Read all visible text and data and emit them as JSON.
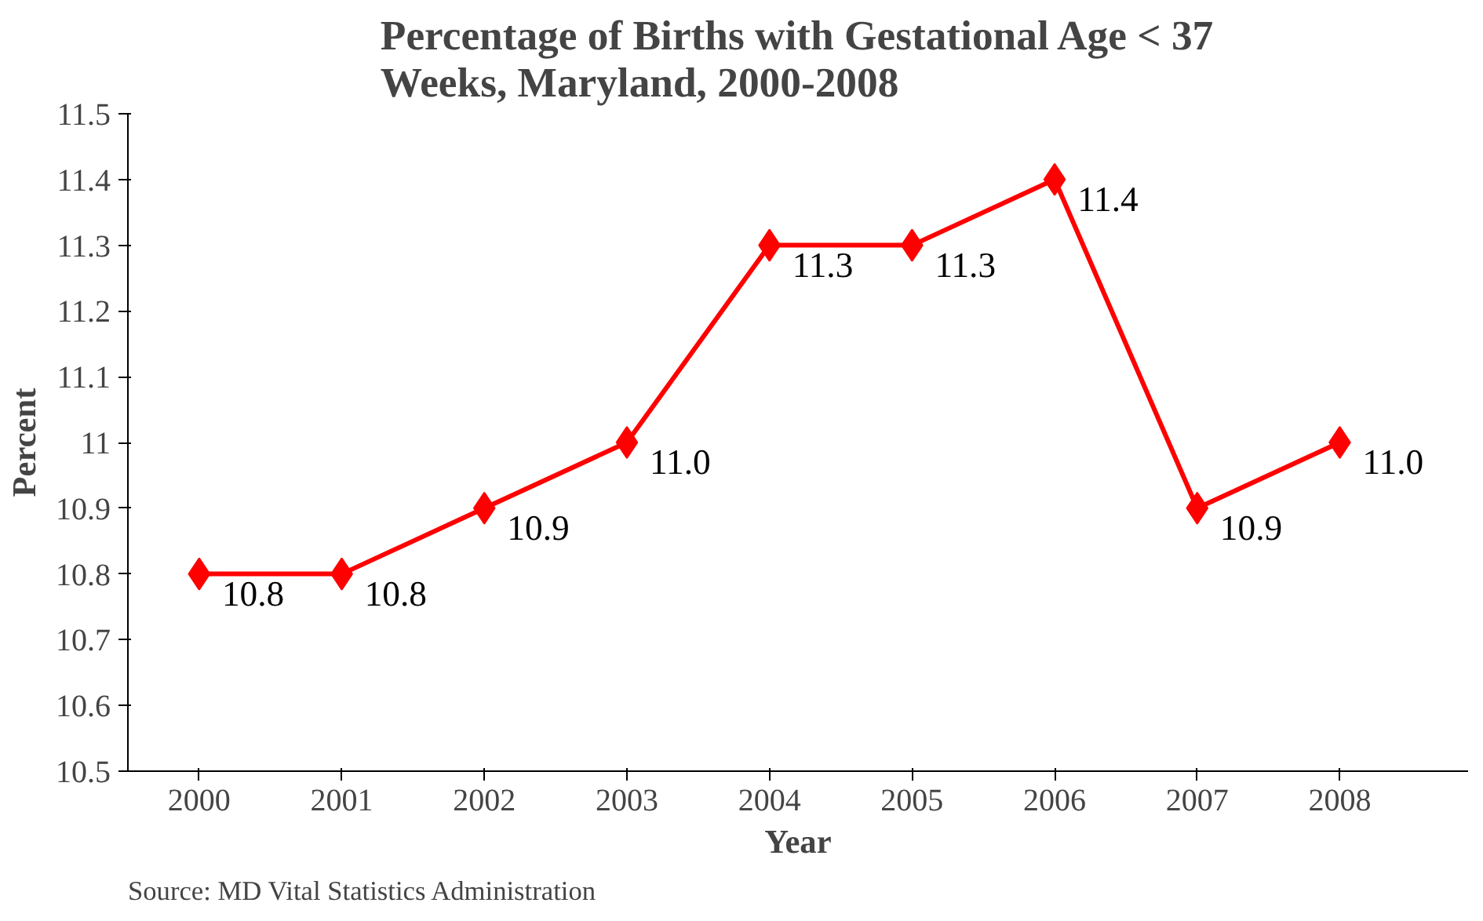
{
  "chart_data": {
    "type": "line",
    "title": "Percentage of Births with Gestational Age < 37 Weeks, Maryland, 2000-2008",
    "xlabel": "Year",
    "ylabel": "Percent",
    "categories": [
      "2000",
      "2001",
      "2002",
      "2003",
      "2004",
      "2005",
      "2006",
      "2007",
      "2008"
    ],
    "series": [
      {
        "color": "#ff0000",
        "values": [
          10.8,
          10.8,
          10.9,
          11.0,
          11.3,
          11.3,
          11.4,
          10.9,
          11.0
        ],
        "value_labels": [
          "10.8",
          "10.8",
          "10.9",
          "11.0",
          "11.3",
          "11.3",
          "11.4",
          "10.9",
          "11.0"
        ]
      }
    ],
    "ylim": [
      10.5,
      11.5
    ],
    "yticks": [
      10.5,
      10.6,
      10.7,
      10.8,
      10.9,
      11,
      11.1,
      11.2,
      11.3,
      11.4,
      11.5
    ],
    "marker": "diamond",
    "line_style": "solid",
    "grid": false,
    "annotations": [
      "Source: MD Vital Statistics Administration"
    ]
  }
}
